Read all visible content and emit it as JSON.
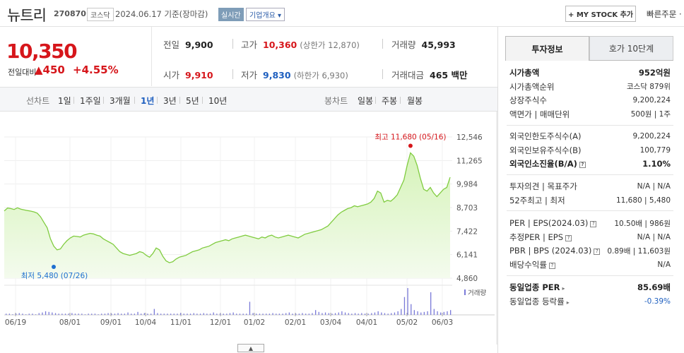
{
  "header": {
    "stock_name": "뉴트리",
    "stock_code": "270870",
    "market": "코스닥",
    "date_text": "2024.06.17  기준(장마감)",
    "realtime": "실시간",
    "company_overview": "기업개요 ▾",
    "mystock_btn": "+ MY STOCK 추가",
    "quick_order": "빠른주문 ·"
  },
  "price": {
    "current": "10,350",
    "change_label": "전일대비",
    "change_value": "▲450",
    "change_rate": "+4.55%"
  },
  "summary": {
    "prev_close_label": "전일",
    "prev_close": "9,900",
    "high_label": "고가",
    "high": "10,360",
    "upper_limit": "(상한가 12,870)",
    "volume_label": "거래량",
    "volume": "45,993",
    "open_label": "시가",
    "open": "9,910",
    "low_label": "저가",
    "low": "9,830",
    "lower_limit": "(하한가 6,930)",
    "amount_label": "거래대금",
    "amount": "465 백만"
  },
  "period_bar": {
    "line_chart_label": "선차트",
    "line_periods": [
      "1일",
      "1주일",
      "3개월",
      "1년",
      "3년",
      "5년",
      "10년"
    ],
    "active_period": "1년",
    "candle_chart_label": "봉차트",
    "candle_periods": [
      "일봉",
      "주봉",
      "월봉"
    ]
  },
  "chart_data": {
    "type": "area",
    "y_ticks": [
      "12,546",
      "11,265",
      "9,984",
      "8,703",
      "7,422",
      "6,141",
      "4,860"
    ],
    "ylim": [
      4860,
      12546
    ],
    "x_ticks": [
      "06/19",
      "08/01",
      "09/01",
      "10/04",
      "11/01",
      "12/01",
      "01/02",
      "02/01",
      "03/04",
      "04/01",
      "05/02",
      "06/03"
    ],
    "high_annotation": "최고 11,680 (05/16)",
    "low_annotation": "최저 5,480 (07/26)",
    "volume_legend": "거래량",
    "line_color": "#80cc40",
    "fill_color": "#d5f3b8",
    "high_color": "#d6161b",
    "low_color": "#1e6fd0",
    "prices": [
      8520,
      8680,
      8650,
      8600,
      8690,
      8620,
      8580,
      8540,
      8510,
      8470,
      8400,
      8200,
      7900,
      7600,
      7000,
      6600,
      6400,
      6450,
      6700,
      6900,
      7050,
      7150,
      7130,
      7100,
      7200,
      7250,
      7300,
      7270,
      7200,
      7150,
      7000,
      6900,
      6800,
      6700,
      6500,
      6300,
      6200,
      6150,
      6100,
      6150,
      6200,
      6300,
      6250,
      6100,
      6000,
      6200,
      6500,
      6400,
      6050,
      5800,
      5700,
      5750,
      5900,
      6000,
      6050,
      6100,
      6200,
      6300,
      6350,
      6400,
      6500,
      6550,
      6600,
      6700,
      6800,
      6850,
      6900,
      6950,
      6900,
      7000,
      7050,
      7100,
      7150,
      7200,
      7150,
      7100,
      7050,
      7000,
      7100,
      7050,
      7150,
      7200,
      7100,
      7050,
      7100,
      7150,
      7200,
      7150,
      7100,
      7050,
      7150,
      7250,
      7300,
      7350,
      7400,
      7450,
      7500,
      7600,
      7700,
      7900,
      8100,
      8300,
      8450,
      8550,
      8650,
      8700,
      8800,
      8750,
      8800,
      8850,
      8900,
      9000,
      9200,
      9600,
      9500,
      9000,
      9100,
      9050,
      9200,
      9400,
      9800,
      10200,
      11000,
      11680,
      11500,
      11000,
      10300,
      9700,
      9600,
      9800,
      9500,
      9300,
      9500,
      9700,
      9800,
      10350
    ],
    "volumes": [
      2,
      2,
      1,
      2,
      3,
      2,
      1,
      2,
      2,
      1,
      3,
      4,
      6,
      5,
      4,
      3,
      2,
      2,
      2,
      2,
      3,
      2,
      2,
      2,
      1,
      2,
      2,
      2,
      1,
      2,
      2,
      3,
      2,
      2,
      3,
      2,
      2,
      4,
      2,
      2,
      5,
      2,
      3,
      2,
      2,
      10,
      3,
      2,
      2,
      2,
      2,
      2,
      2,
      3,
      2,
      2,
      2,
      3,
      2,
      2,
      3,
      2,
      2,
      4,
      2,
      2,
      2,
      2,
      3,
      4,
      2,
      2,
      2,
      2,
      22,
      3,
      2,
      2,
      2,
      2,
      2,
      3,
      2,
      2,
      2,
      3,
      4,
      2,
      2,
      2,
      3,
      2,
      2,
      3,
      8,
      5,
      3,
      4,
      3,
      2,
      3,
      4,
      6,
      4,
      3,
      2,
      3,
      2,
      3,
      2,
      2,
      3,
      4,
      6,
      4,
      3,
      2,
      3,
      4,
      6,
      10,
      30,
      45,
      18,
      8,
      6,
      4,
      5,
      6,
      38,
      10,
      6,
      4,
      5,
      6,
      8
    ]
  },
  "invest_panel": {
    "tab_invest": "투자정보",
    "tab_hoga": "호가 10단계",
    "rows1": [
      {
        "label": "시가총액",
        "value": "952억원",
        "bold": true
      },
      {
        "label": "시가총액순위",
        "value": "코스닥 879위"
      },
      {
        "label": "상장주식수",
        "value": "9,200,224"
      },
      {
        "label": "액면가 | 매매단위",
        "value": "500원 | 1주"
      }
    ],
    "rows2": [
      {
        "label": "외국인한도주식수(A)",
        "value": "9,200,224"
      },
      {
        "label": "외국인보유주식수(B)",
        "value": "100,779"
      },
      {
        "label": "외국인소진율(B/A)",
        "value": "1.10%",
        "bold": true,
        "q": true
      }
    ],
    "rows3": [
      {
        "label": "투자의견 | 목표주가",
        "value": "N/A | N/A"
      },
      {
        "label": "52주최고 | 최저",
        "value": "11,680 | 5,480"
      }
    ],
    "rows4": [
      {
        "label": "PER | EPS(2024.03)",
        "value": "10.50배 | 986원",
        "q": true
      },
      {
        "label": "추정PER | EPS",
        "value": "N/A | N/A",
        "q": true
      },
      {
        "label": "PBR | BPS (2024.03)",
        "value": "0.89배 | 11,603원",
        "q": true
      },
      {
        "label": "배당수익률",
        "value": "N/A",
        "q": true
      }
    ],
    "rows5": [
      {
        "label": "동일업종 PER",
        "value": "85.69배",
        "bold": true,
        "arrow": true
      },
      {
        "label": "동일업종 등락률",
        "value": "-0.39%",
        "blue": true,
        "arrow": true
      }
    ]
  }
}
